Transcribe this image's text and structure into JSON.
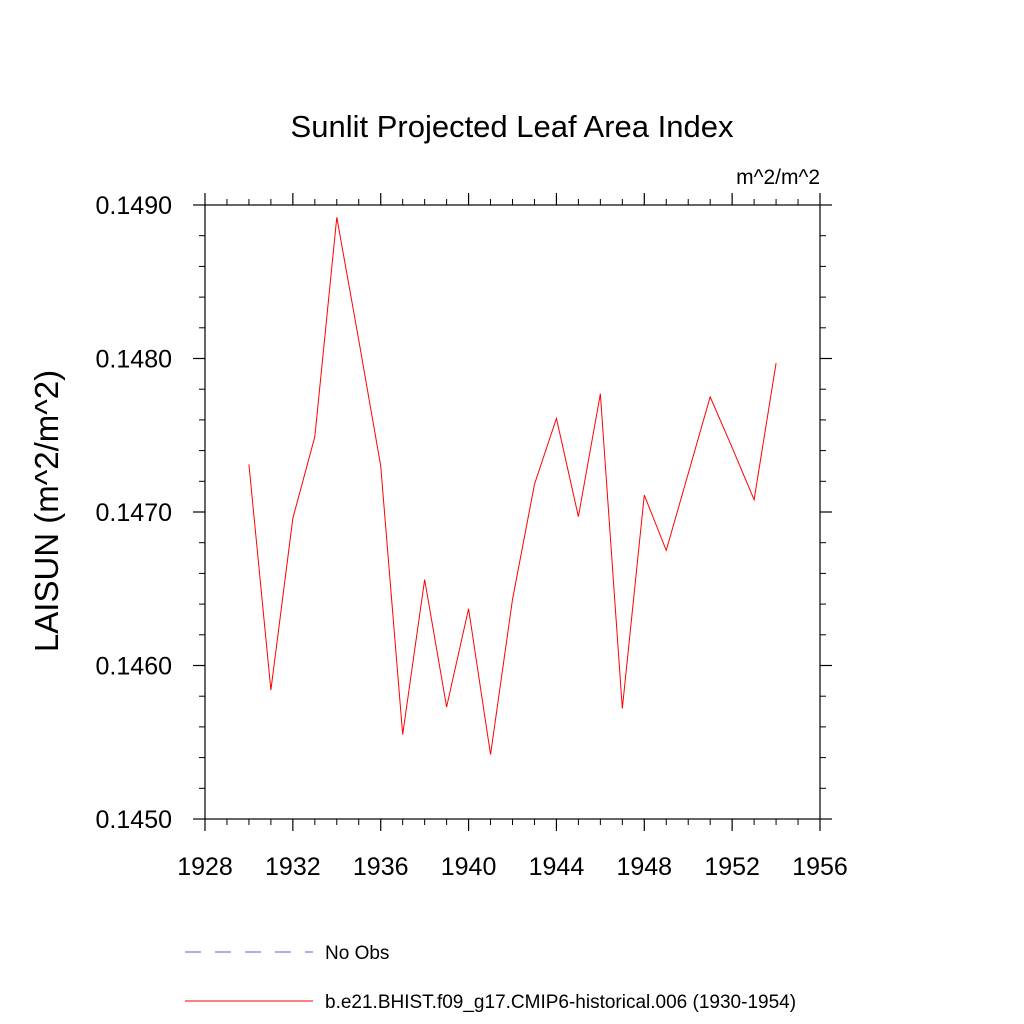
{
  "chart_data": {
    "type": "line",
    "title": "Sunlit Projected Leaf Area Index",
    "units": "m^2/m^2",
    "ylabel": "LAISUN  (m^2/m^2)",
    "xlabel": "",
    "xlim": [
      1928,
      1956
    ],
    "ylim": [
      0.145,
      0.149
    ],
    "xticks": [
      1928,
      1932,
      1936,
      1940,
      1944,
      1948,
      1952,
      1956
    ],
    "xtick_labels": [
      "1928",
      "1932",
      "1936",
      "1940",
      "1944",
      "1948",
      "1952",
      "1956"
    ],
    "yticks": [
      0.145,
      0.146,
      0.147,
      0.148,
      0.149
    ],
    "ytick_labels": [
      "0.1450",
      "0.1460",
      "0.1470",
      "0.1480",
      "0.1490"
    ],
    "grid": false,
    "legend_position": "bottom",
    "series": [
      {
        "name": "b.e21.BHIST.f09_g17.CMIP6-historical.006 (1930-1954)",
        "color": "#ff0000",
        "style": "solid",
        "x": [
          1930,
          1931,
          1932,
          1933,
          1934,
          1935,
          1936,
          1937,
          1938,
          1939,
          1940,
          1941,
          1942,
          1943,
          1944,
          1945,
          1946,
          1947,
          1948,
          1949,
          1950,
          1951,
          1952,
          1953,
          1954
        ],
        "y": [
          0.14731,
          0.14584,
          0.14696,
          0.14749,
          0.14892,
          0.14812,
          0.1473,
          0.14555,
          0.14656,
          0.14573,
          0.14637,
          0.14542,
          0.14643,
          0.14718,
          0.14761,
          0.14697,
          0.14777,
          0.14572,
          0.14711,
          0.14675,
          0.14725,
          0.14775,
          0.14742,
          0.14708,
          0.14797
        ]
      }
    ],
    "legend": [
      {
        "label": "No Obs",
        "color": "#6a5acd",
        "style": "dashed"
      },
      {
        "label": "b.e21.BHIST.f09_g17.CMIP6-historical.006 (1930-1954)",
        "color": "#ff0000",
        "style": "solid"
      }
    ]
  }
}
